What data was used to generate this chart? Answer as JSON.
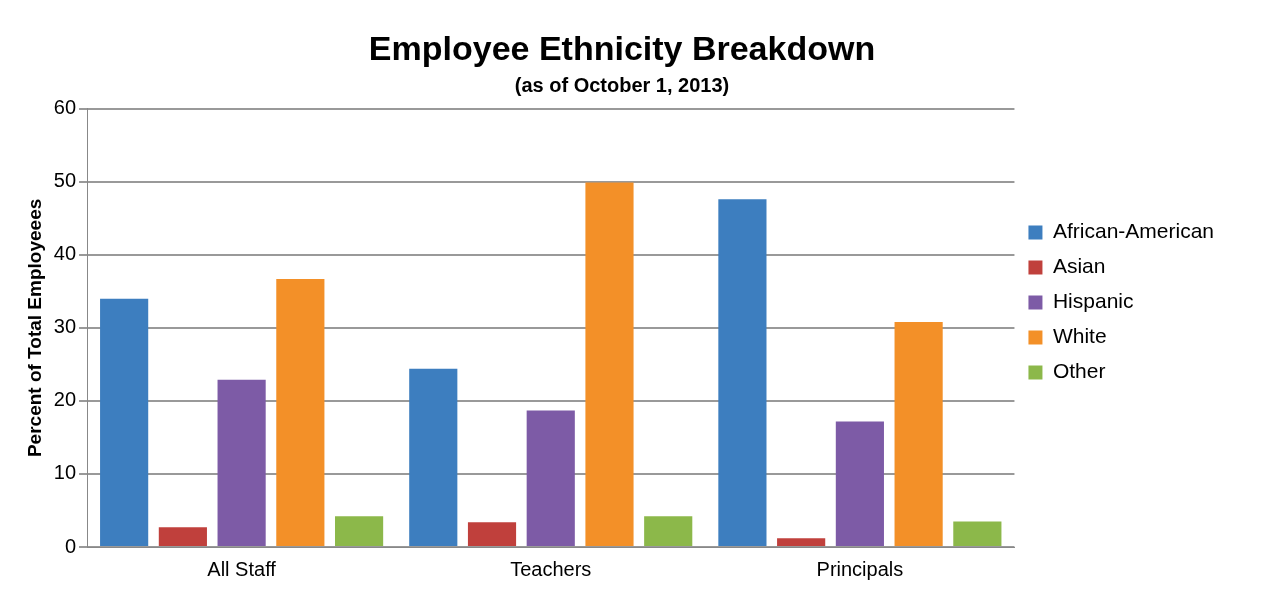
{
  "chart_data": {
    "type": "bar",
    "title": "Employee Ethnicity Breakdown",
    "subtitle": "(as of October 1, 2013)",
    "ylabel": "Percent of Total Employeees",
    "categories": [
      "All Staff",
      "Teachers",
      "Principals"
    ],
    "series": [
      {
        "name": "African-American",
        "color": "#3d7ebf",
        "values": [
          34,
          24.4,
          47.6
        ]
      },
      {
        "name": "Asian",
        "color": "#c0403c",
        "values": [
          2.7,
          3.4,
          1.2
        ]
      },
      {
        "name": "Hispanic",
        "color": "#7d5ba6",
        "values": [
          22.9,
          18.7,
          17.2
        ]
      },
      {
        "name": "White",
        "color": "#f39028",
        "values": [
          36.7,
          49.9,
          30.8
        ]
      },
      {
        "name": "Other",
        "color": "#8cb84a",
        "values": [
          4.2,
          4.2,
          3.5
        ]
      }
    ],
    "ylim": [
      0,
      60
    ],
    "yticks": [
      0,
      10,
      20,
      30,
      40,
      50,
      60
    ],
    "grid": "y",
    "legend": "right"
  }
}
